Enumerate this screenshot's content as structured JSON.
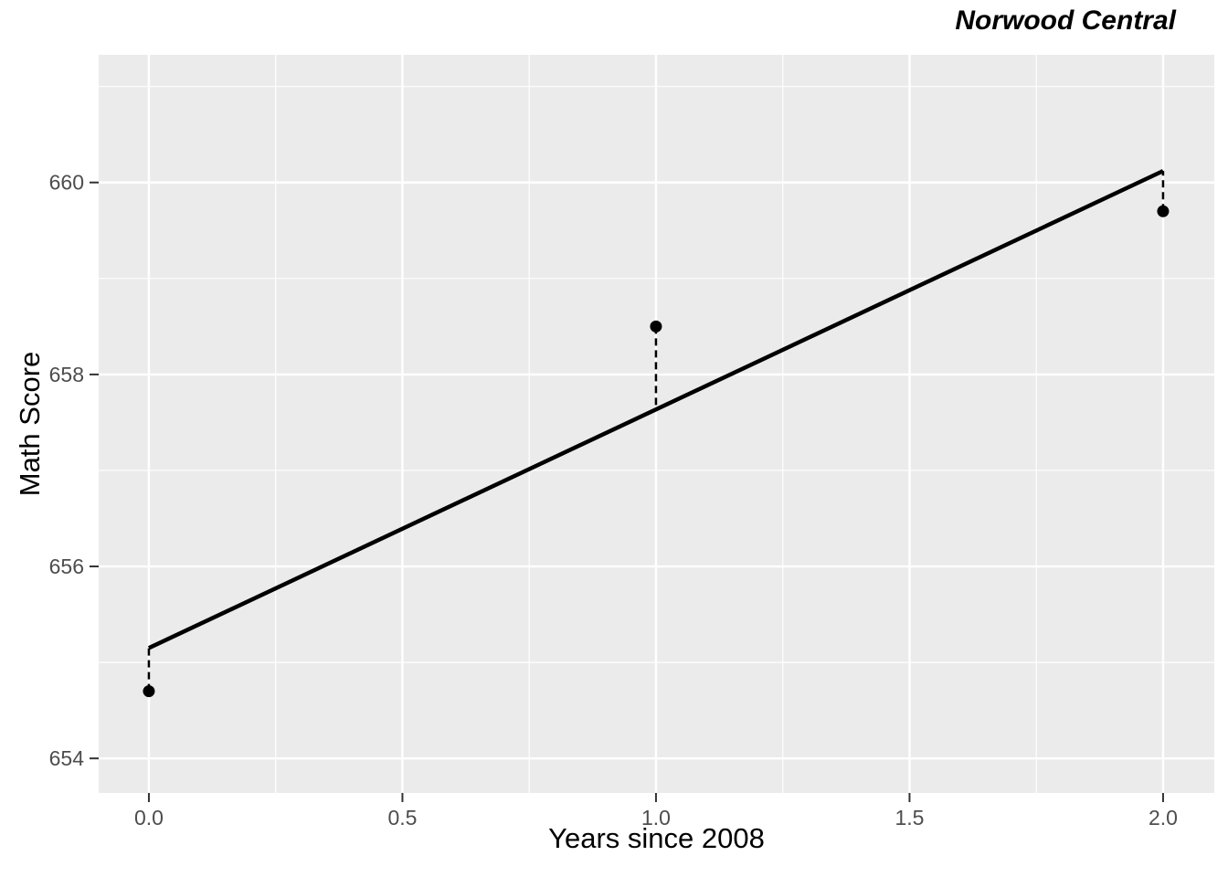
{
  "title": "Norwood Central",
  "chart_data": {
    "type": "scatter",
    "title": "Norwood Central",
    "xlabel": "Years since 2008",
    "ylabel": "Math Score",
    "xlim": [
      -0.099,
      2.101
    ],
    "ylim": [
      653.64,
      661.33
    ],
    "x_major_ticks": [
      0.0,
      0.5,
      1.0,
      1.5,
      2.0
    ],
    "x_tick_labels": [
      "0.0",
      "0.5",
      "1.0",
      "1.5",
      "2.0"
    ],
    "x_minor_ticks": [
      0.25,
      0.75,
      1.25,
      1.75
    ],
    "y_major_ticks": [
      654,
      656,
      658,
      660
    ],
    "y_tick_labels": [
      "654",
      "656",
      "658",
      "660"
    ],
    "y_minor_ticks": [
      655,
      657,
      659,
      661
    ],
    "points": {
      "x": [
        0,
        1,
        2
      ],
      "y": [
        654.7,
        658.5,
        659.7
      ]
    },
    "fitted_line": {
      "x": [
        0,
        2
      ],
      "y": [
        655.15,
        660.12
      ]
    },
    "fitted_values": [
      655.15,
      657.64,
      660.12
    ],
    "residual_line_style": "dashed",
    "grid": "on",
    "legend": "none",
    "colors": {
      "panel_bg": "#EBEBEB",
      "grid": "#FFFFFF",
      "line": "#000000",
      "point": "#000000",
      "residual": "#000000",
      "tick_mark": "#333333",
      "tick_label": "#4D4D4D",
      "axis_title": "#000000",
      "title": "#000000"
    }
  }
}
